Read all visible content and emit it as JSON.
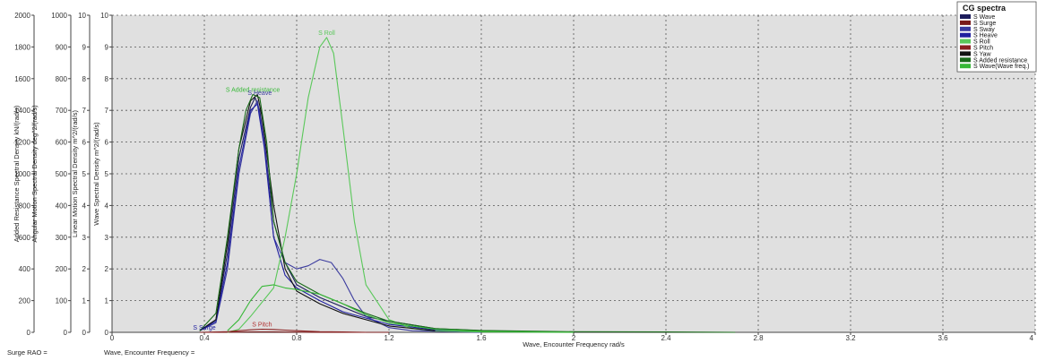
{
  "colors": {
    "plot_bg": "#e0e0e0",
    "grid": "#555555",
    "axis": "#444444"
  },
  "status_bar": {
    "surge_label": "Surge RAO =",
    "surge_value": "",
    "freq_label": "Wave, Encounter Frequency =",
    "freq_value": ""
  },
  "chart_data": {
    "type": "line",
    "xlabel": "Wave, Encounter Frequency  rad/s",
    "xlim": [
      0,
      4
    ],
    "x_ticks": [
      "0",
      "0.4",
      "0.8",
      "1.2",
      "1.6",
      "2",
      "2.4",
      "2.8",
      "3.2",
      "3.6",
      "4"
    ],
    "grid": true,
    "legend_position": "top-right",
    "legend_title": "CG spectra",
    "y_axes": [
      {
        "label": "Added Resistance Spectral Density  kN/(rad/s)",
        "range": [
          0,
          2000
        ],
        "ticks": [
          "0",
          "200",
          "400",
          "600",
          "800",
          "1000",
          "1200",
          "1400",
          "1600",
          "1800",
          "2000"
        ]
      },
      {
        "label": "Angular Motion Spectral Density  deg^2/(rad/s)",
        "range": [
          0,
          1000
        ],
        "ticks": [
          "0",
          "100",
          "200",
          "300",
          "400",
          "500",
          "600",
          "700",
          "800",
          "900",
          "1000"
        ]
      },
      {
        "label": "Linear Motion Spectral Density  m^2/(rad/s)",
        "range": [
          0,
          10
        ],
        "ticks": [
          "0",
          "1",
          "2",
          "3",
          "4",
          "5",
          "6",
          "7",
          "8",
          "9",
          "10"
        ]
      },
      {
        "label": "Wave Spectral Density  m^2/(rad/s)",
        "range": [
          0,
          10
        ],
        "ticks": [
          "0",
          "1",
          "2",
          "3",
          "4",
          "5",
          "6",
          "7",
          "8",
          "9",
          "10"
        ]
      }
    ],
    "series": [
      {
        "name": "S Wave",
        "color": "#1c1c5c",
        "x": [
          0.38,
          0.45,
          0.5,
          0.55,
          0.6,
          0.62,
          0.64,
          0.66,
          0.7,
          0.75,
          0.8,
          0.9,
          1.0,
          1.1,
          1.2,
          1.4,
          1.6,
          2.0
        ],
        "y": [
          0.05,
          0.4,
          2.5,
          5.5,
          7.1,
          7.4,
          7.0,
          6.0,
          3.5,
          2.2,
          1.5,
          1.1,
          0.8,
          0.5,
          0.35,
          0.12,
          0.05,
          0.0
        ]
      },
      {
        "name": "S Surge",
        "color": "#7a1a1a",
        "x": [
          0.38,
          0.5,
          0.6,
          0.64,
          0.7,
          0.8,
          0.9,
          1.0,
          1.2
        ],
        "y": [
          0.0,
          0.005,
          0.01,
          0.012,
          0.01,
          0.006,
          0.003,
          0.001,
          0.0
        ]
      },
      {
        "name": "S Sway",
        "color": "#3a3a9e",
        "x": [
          0.38,
          0.45,
          0.5,
          0.55,
          0.6,
          0.63,
          0.66,
          0.7,
          0.75,
          0.8,
          0.85,
          0.9,
          0.95,
          1.0,
          1.05,
          1.1,
          1.2,
          1.3,
          1.6
        ],
        "y": [
          0.05,
          0.3,
          2.0,
          5.0,
          6.9,
          7.3,
          6.0,
          3.0,
          2.2,
          2.0,
          2.1,
          2.3,
          2.2,
          1.7,
          1.0,
          0.5,
          0.15,
          0.05,
          0.0
        ]
      },
      {
        "name": "S Heave",
        "color": "#2020a0",
        "x": [
          0.38,
          0.45,
          0.5,
          0.55,
          0.6,
          0.63,
          0.66,
          0.7,
          0.75,
          0.8,
          0.9,
          1.0,
          1.2,
          1.4,
          1.6
        ],
        "y": [
          0.05,
          0.35,
          2.2,
          5.2,
          7.0,
          7.2,
          5.8,
          3.0,
          1.8,
          1.4,
          1.0,
          0.65,
          0.25,
          0.08,
          0.0
        ]
      },
      {
        "name": "S Roll",
        "color": "#5ac85a",
        "x": [
          0.5,
          0.55,
          0.6,
          0.7,
          0.75,
          0.8,
          0.85,
          0.9,
          0.93,
          0.96,
          1.0,
          1.05,
          1.1,
          1.2,
          1.3,
          1.4,
          1.6,
          2.0
        ],
        "y": [
          0.0,
          0.1,
          0.5,
          1.4,
          3.0,
          5.0,
          7.4,
          9.0,
          9.3,
          8.8,
          6.5,
          3.5,
          1.5,
          0.4,
          0.12,
          0.05,
          0.01,
          0.0
        ]
      },
      {
        "name": "S Pitch",
        "color": "#8a2020",
        "x": [
          0.4,
          0.5,
          0.55,
          0.6,
          0.65,
          0.7,
          0.75,
          0.8,
          0.9,
          1.0,
          1.1
        ],
        "y": [
          0.0,
          0.02,
          0.05,
          0.08,
          0.1,
          0.09,
          0.07,
          0.05,
          0.02,
          0.01,
          0.0
        ]
      },
      {
        "name": "S Yaw",
        "color": "#111111",
        "x": [
          0.38,
          0.45,
          0.5,
          0.55,
          0.6,
          0.63,
          0.65,
          0.7,
          0.75,
          0.8,
          0.9,
          1.0,
          1.2,
          1.4
        ],
        "y": [
          0.05,
          0.4,
          2.8,
          5.8,
          7.3,
          7.5,
          6.8,
          4.0,
          2.0,
          1.3,
          0.9,
          0.6,
          0.2,
          0.05
        ]
      },
      {
        "name": "S Added resistance",
        "color": "#1a6a1a",
        "x": [
          0.38,
          0.45,
          0.5,
          0.55,
          0.58,
          0.61,
          0.64,
          0.67,
          0.7,
          0.75,
          0.8,
          0.9,
          1.0,
          1.1,
          1.2,
          1.4,
          1.6,
          2.0,
          2.4,
          2.7
        ],
        "y": [
          0.05,
          0.6,
          3.0,
          5.8,
          7.0,
          7.5,
          7.4,
          6.0,
          3.5,
          2.2,
          1.6,
          1.2,
          0.9,
          0.6,
          0.35,
          0.12,
          0.06,
          0.02,
          0.01,
          0.0
        ]
      },
      {
        "name": "S Wave(Wave freq.)",
        "color": "#38b838",
        "x": [
          0.5,
          0.55,
          0.6,
          0.65,
          0.7,
          0.75,
          0.8,
          0.9,
          1.0,
          1.1,
          1.2,
          1.4,
          1.6,
          2.0
        ],
        "y": [
          0.05,
          0.4,
          1.0,
          1.45,
          1.5,
          1.4,
          1.35,
          1.2,
          0.9,
          0.55,
          0.3,
          0.1,
          0.03,
          0.0
        ]
      }
    ],
    "annotations": [
      {
        "text": "S Roll",
        "x": 0.93,
        "y": 9.3,
        "color": "#5ac85a"
      },
      {
        "text": "S Added resistance",
        "x": 0.61,
        "y": 7.5,
        "color": "#38b838"
      },
      {
        "text": "S Heave",
        "x": 0.64,
        "y": 7.4,
        "color": "#3a3a9e"
      },
      {
        "text": "S Pitch",
        "x": 0.65,
        "y": 0.1,
        "color": "#b03030"
      },
      {
        "text": "S Surge",
        "x": 0.4,
        "y": 0.0,
        "color": "#2020a0"
      }
    ]
  }
}
